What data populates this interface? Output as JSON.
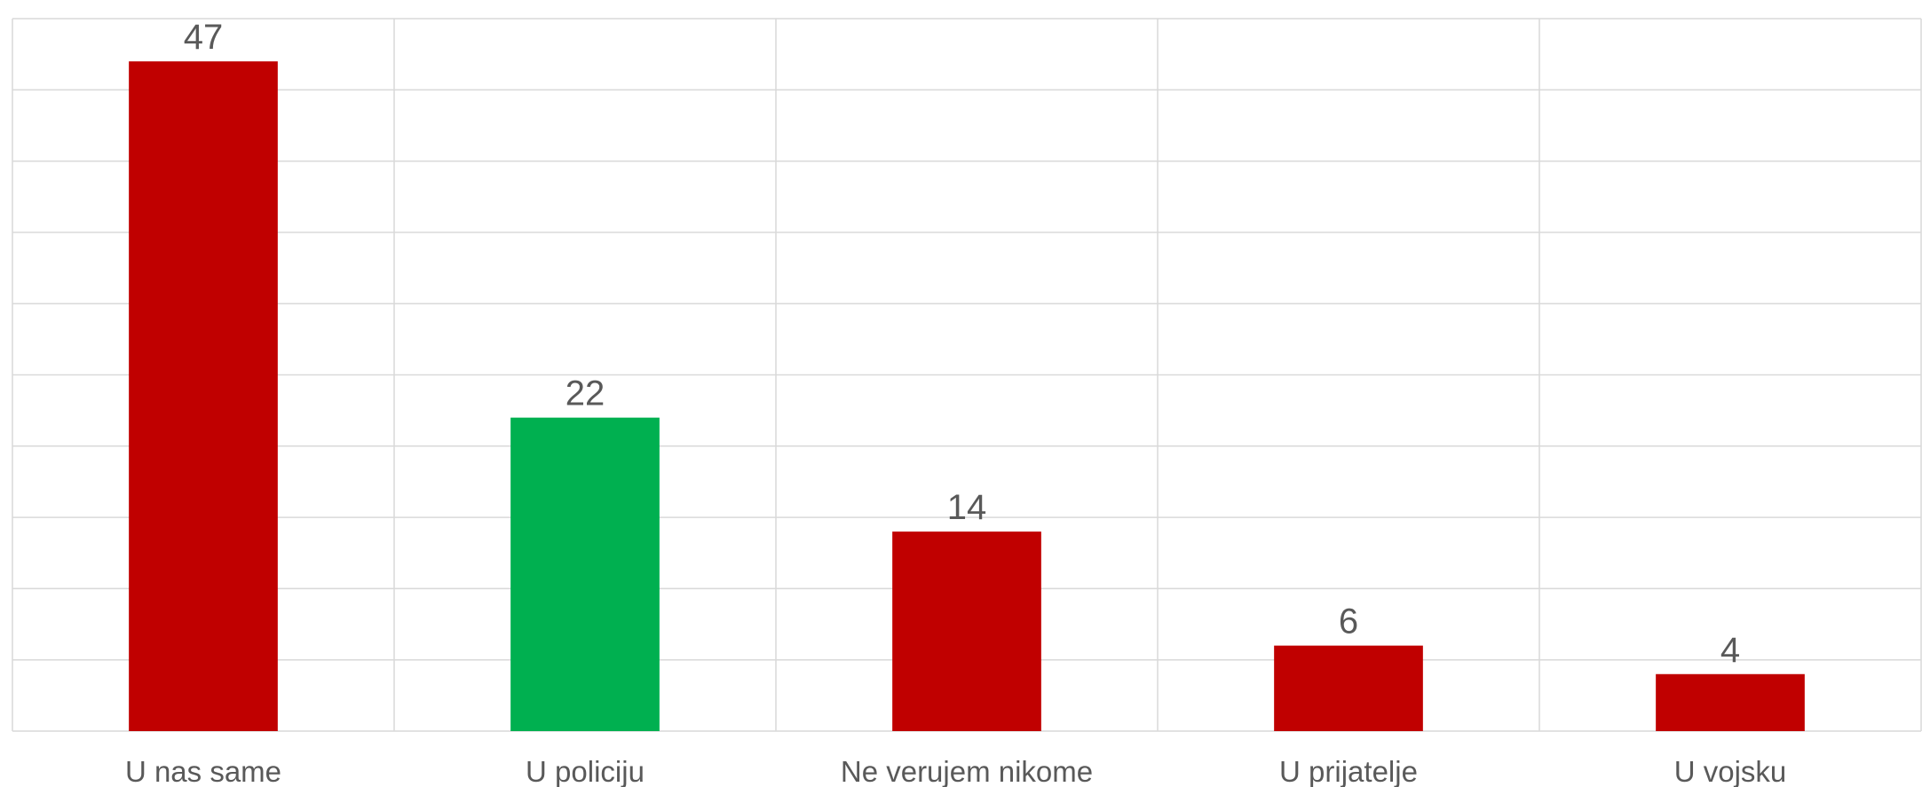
{
  "chart_data": {
    "type": "bar",
    "categories": [
      "U nas same",
      "U policiju",
      "Ne verujem nikome",
      "U prijatelje",
      "U vojsku"
    ],
    "values": [
      47,
      22,
      14,
      6,
      4
    ],
    "colors": [
      "#c00000",
      "#00b050",
      "#c00000",
      "#c00000",
      "#c00000"
    ],
    "ylim": [
      0,
      50
    ],
    "yticks": [
      0,
      5,
      10,
      15,
      20,
      25,
      30,
      35,
      40,
      45,
      50
    ],
    "grid": true
  }
}
